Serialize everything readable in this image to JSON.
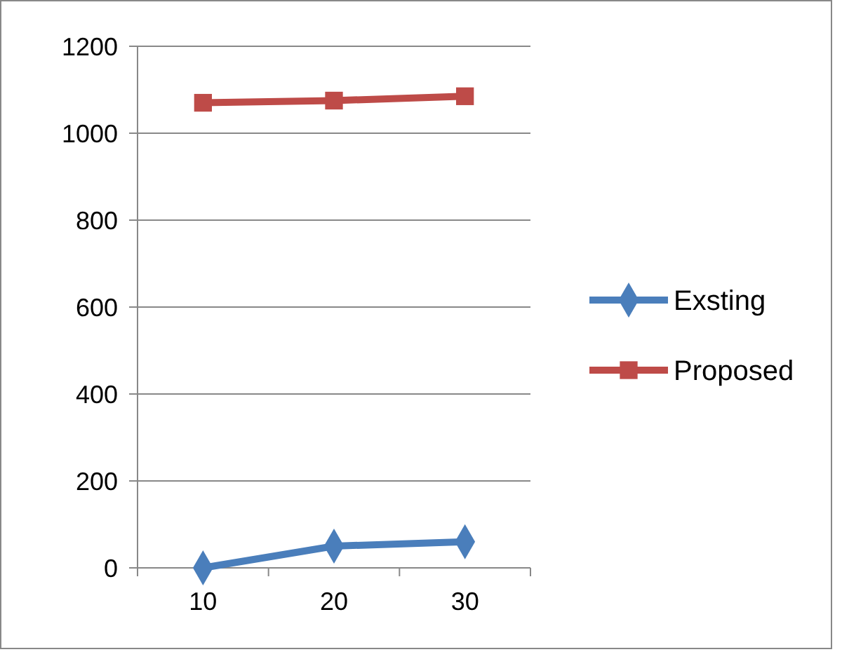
{
  "chart_data": {
    "type": "line",
    "categories": [
      "10",
      "20",
      "30"
    ],
    "series": [
      {
        "name": "Exsting",
        "color": "#4a7ebb",
        "values": [
          0,
          50,
          60
        ],
        "marker": "diamond"
      },
      {
        "name": "Proposed",
        "color": "#be4b48",
        "values": [
          1070,
          1075,
          1085
        ],
        "marker": "square"
      }
    ],
    "ylim": [
      0,
      1200
    ],
    "yticks": [
      0,
      200,
      400,
      600,
      800,
      1000,
      1200
    ],
    "grid": "y",
    "legend": "right"
  }
}
